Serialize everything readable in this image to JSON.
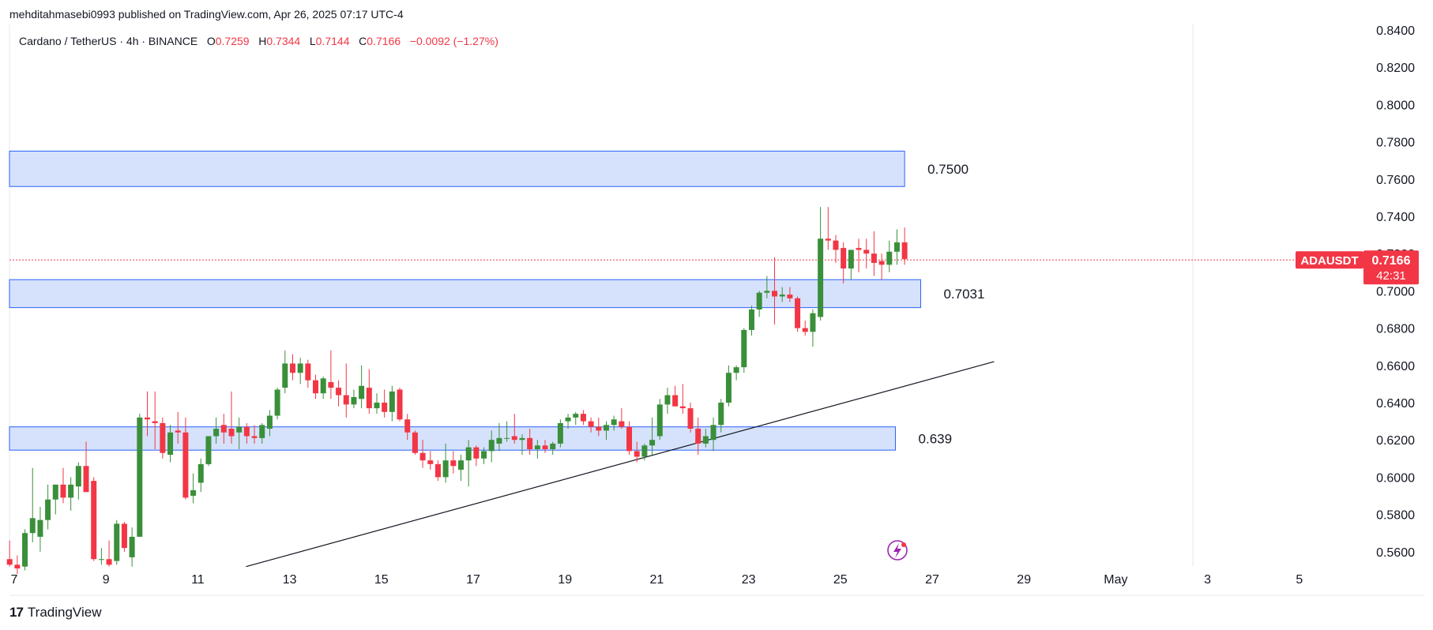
{
  "header": {
    "published": "mehditahmasebi0993 published on TradingView.com, Apr 26, 2025 07:17 UTC-4"
  },
  "legend": {
    "symbol": "Cardano / TetherUS · 4h · BINANCE",
    "o_label": "O",
    "o": "0.7259",
    "h_label": "H",
    "h": "0.7344",
    "l_label": "L",
    "l": "0.7144",
    "c_label": "C",
    "c": "0.7166",
    "change": "−0.0092 (−1.27%)"
  },
  "price_tag": {
    "symbol": "ADAUSDT",
    "price": "0.7166",
    "countdown": "42:31"
  },
  "footer": {
    "brand": "TradingView",
    "logo": "17"
  },
  "colors": {
    "up": "#3a8f3a",
    "down": "#f23645",
    "zone_fill": "#d4e0fb",
    "zone_stroke": "#2962ff",
    "trendline": "#131722",
    "axis_text": "#131722",
    "grid": "#e6e9ef"
  },
  "chart_data": {
    "type": "candlestick",
    "title": "",
    "y_axis": {
      "min": 0.55,
      "max": 0.84,
      "ticks": [
        "0.5600",
        "0.5800",
        "0.6000",
        "0.6200",
        "0.6400",
        "0.6600",
        "0.6800",
        "0.7000",
        "0.7200",
        "0.7400",
        "0.7600",
        "0.7800",
        "0.8000",
        "0.8200",
        "0.8400"
      ]
    },
    "x_axis": {
      "ticks": [
        {
          "label": "7",
          "day": 7
        },
        {
          "label": "9",
          "day": 9
        },
        {
          "label": "11",
          "day": 11
        },
        {
          "label": "13",
          "day": 13
        },
        {
          "label": "15",
          "day": 15
        },
        {
          "label": "17",
          "day": 17
        },
        {
          "label": "19",
          "day": 19
        },
        {
          "label": "21",
          "day": 21
        },
        {
          "label": "23",
          "day": 23
        },
        {
          "label": "25",
          "day": 25
        },
        {
          "label": "27",
          "day": 27
        },
        {
          "label": "29",
          "day": 29
        },
        {
          "label": "May",
          "day": 31
        },
        {
          "label": "3",
          "day": 33
        },
        {
          "label": "5",
          "day": 35
        }
      ]
    },
    "zones": [
      {
        "label": "0.7500",
        "low": 0.756,
        "high": 0.775,
        "end_day": 26.4
      },
      {
        "label": "0.7031",
        "low": 0.691,
        "high": 0.706,
        "end_day": 26.75
      },
      {
        "label": "0.639",
        "low": 0.6145,
        "high": 0.627,
        "end_day": 26.2
      }
    ],
    "trendline": {
      "x1": 12.05,
      "y1": 0.552,
      "x2": 28.35,
      "y2": 0.662
    },
    "current_price": 0.7166,
    "candles": [
      {
        "o": 0.556,
        "h": 0.566,
        "l": 0.552,
        "c": 0.553
      },
      {
        "o": 0.553,
        "h": 0.558,
        "l": 0.548,
        "c": 0.551
      },
      {
        "o": 0.552,
        "h": 0.572,
        "l": 0.55,
        "c": 0.57
      },
      {
        "o": 0.57,
        "h": 0.605,
        "l": 0.565,
        "c": 0.578
      },
      {
        "o": 0.568,
        "h": 0.584,
        "l": 0.56,
        "c": 0.577
      },
      {
        "o": 0.577,
        "h": 0.596,
        "l": 0.572,
        "c": 0.588
      },
      {
        "o": 0.588,
        "h": 0.596,
        "l": 0.58,
        "c": 0.596
      },
      {
        "o": 0.596,
        "h": 0.605,
        "l": 0.586,
        "c": 0.589
      },
      {
        "o": 0.589,
        "h": 0.6,
        "l": 0.582,
        "c": 0.596
      },
      {
        "o": 0.595,
        "h": 0.608,
        "l": 0.588,
        "c": 0.606
      },
      {
        "o": 0.606,
        "h": 0.619,
        "l": 0.592,
        "c": 0.592
      },
      {
        "o": 0.598,
        "h": 0.6,
        "l": 0.555,
        "c": 0.556
      },
      {
        "o": 0.556,
        "h": 0.562,
        "l": 0.553,
        "c": 0.556
      },
      {
        "o": 0.556,
        "h": 0.566,
        "l": 0.552,
        "c": 0.553
      },
      {
        "o": 0.555,
        "h": 0.577,
        "l": 0.553,
        "c": 0.575
      },
      {
        "o": 0.575,
        "h": 0.576,
        "l": 0.56,
        "c": 0.562
      },
      {
        "o": 0.557,
        "h": 0.573,
        "l": 0.552,
        "c": 0.568
      },
      {
        "o": 0.568,
        "h": 0.634,
        "l": 0.568,
        "c": 0.632
      },
      {
        "o": 0.632,
        "h": 0.646,
        "l": 0.622,
        "c": 0.631
      },
      {
        "o": 0.63,
        "h": 0.646,
        "l": 0.615,
        "c": 0.629
      },
      {
        "o": 0.629,
        "h": 0.632,
        "l": 0.61,
        "c": 0.613
      },
      {
        "o": 0.612,
        "h": 0.628,
        "l": 0.608,
        "c": 0.624
      },
      {
        "o": 0.625,
        "h": 0.635,
        "l": 0.618,
        "c": 0.624
      },
      {
        "o": 0.624,
        "h": 0.632,
        "l": 0.588,
        "c": 0.589
      },
      {
        "o": 0.59,
        "h": 0.602,
        "l": 0.586,
        "c": 0.593
      },
      {
        "o": 0.597,
        "h": 0.61,
        "l": 0.592,
        "c": 0.607
      },
      {
        "o": 0.607,
        "h": 0.622,
        "l": 0.606,
        "c": 0.622
      },
      {
        "o": 0.622,
        "h": 0.632,
        "l": 0.618,
        "c": 0.626
      },
      {
        "o": 0.628,
        "h": 0.634,
        "l": 0.618,
        "c": 0.624
      },
      {
        "o": 0.626,
        "h": 0.646,
        "l": 0.618,
        "c": 0.622
      },
      {
        "o": 0.624,
        "h": 0.632,
        "l": 0.615,
        "c": 0.627
      },
      {
        "o": 0.627,
        "h": 0.629,
        "l": 0.618,
        "c": 0.622
      },
      {
        "o": 0.622,
        "h": 0.628,
        "l": 0.618,
        "c": 0.621
      },
      {
        "o": 0.621,
        "h": 0.629,
        "l": 0.618,
        "c": 0.628
      },
      {
        "o": 0.626,
        "h": 0.636,
        "l": 0.622,
        "c": 0.633
      },
      {
        "o": 0.633,
        "h": 0.648,
        "l": 0.631,
        "c": 0.647
      },
      {
        "o": 0.648,
        "h": 0.668,
        "l": 0.645,
        "c": 0.661
      },
      {
        "o": 0.661,
        "h": 0.666,
        "l": 0.652,
        "c": 0.656
      },
      {
        "o": 0.656,
        "h": 0.664,
        "l": 0.65,
        "c": 0.661
      },
      {
        "o": 0.661,
        "h": 0.663,
        "l": 0.648,
        "c": 0.652
      },
      {
        "o": 0.652,
        "h": 0.655,
        "l": 0.642,
        "c": 0.645
      },
      {
        "o": 0.645,
        "h": 0.654,
        "l": 0.642,
        "c": 0.653
      },
      {
        "o": 0.651,
        "h": 0.668,
        "l": 0.642,
        "c": 0.648
      },
      {
        "o": 0.648,
        "h": 0.652,
        "l": 0.638,
        "c": 0.644
      },
      {
        "o": 0.644,
        "h": 0.661,
        "l": 0.632,
        "c": 0.639
      },
      {
        "o": 0.639,
        "h": 0.647,
        "l": 0.637,
        "c": 0.643
      },
      {
        "o": 0.642,
        "h": 0.66,
        "l": 0.637,
        "c": 0.649
      },
      {
        "o": 0.648,
        "h": 0.658,
        "l": 0.634,
        "c": 0.637
      },
      {
        "o": 0.637,
        "h": 0.645,
        "l": 0.634,
        "c": 0.64
      },
      {
        "o": 0.64,
        "h": 0.647,
        "l": 0.632,
        "c": 0.635
      },
      {
        "o": 0.635,
        "h": 0.649,
        "l": 0.63,
        "c": 0.646
      },
      {
        "o": 0.647,
        "h": 0.648,
        "l": 0.63,
        "c": 0.631
      },
      {
        "o": 0.631,
        "h": 0.634,
        "l": 0.62,
        "c": 0.624
      },
      {
        "o": 0.624,
        "h": 0.625,
        "l": 0.612,
        "c": 0.613
      },
      {
        "o": 0.613,
        "h": 0.62,
        "l": 0.605,
        "c": 0.609
      },
      {
        "o": 0.609,
        "h": 0.614,
        "l": 0.604,
        "c": 0.607
      },
      {
        "o": 0.607,
        "h": 0.609,
        "l": 0.598,
        "c": 0.6
      },
      {
        "o": 0.6,
        "h": 0.618,
        "l": 0.597,
        "c": 0.609
      },
      {
        "o": 0.609,
        "h": 0.614,
        "l": 0.602,
        "c": 0.606
      },
      {
        "o": 0.604,
        "h": 0.612,
        "l": 0.598,
        "c": 0.609
      },
      {
        "o": 0.609,
        "h": 0.62,
        "l": 0.595,
        "c": 0.616
      },
      {
        "o": 0.616,
        "h": 0.617,
        "l": 0.606,
        "c": 0.61
      },
      {
        "o": 0.61,
        "h": 0.616,
        "l": 0.607,
        "c": 0.614
      },
      {
        "o": 0.614,
        "h": 0.625,
        "l": 0.608,
        "c": 0.62
      },
      {
        "o": 0.618,
        "h": 0.629,
        "l": 0.614,
        "c": 0.621
      },
      {
        "o": 0.621,
        "h": 0.63,
        "l": 0.619,
        "c": 0.621
      },
      {
        "o": 0.622,
        "h": 0.634,
        "l": 0.618,
        "c": 0.62
      },
      {
        "o": 0.62,
        "h": 0.623,
        "l": 0.612,
        "c": 0.621
      },
      {
        "o": 0.621,
        "h": 0.626,
        "l": 0.612,
        "c": 0.615
      },
      {
        "o": 0.615,
        "h": 0.62,
        "l": 0.61,
        "c": 0.617
      },
      {
        "o": 0.617,
        "h": 0.62,
        "l": 0.613,
        "c": 0.615
      },
      {
        "o": 0.615,
        "h": 0.619,
        "l": 0.612,
        "c": 0.618
      },
      {
        "o": 0.618,
        "h": 0.631,
        "l": 0.616,
        "c": 0.629
      },
      {
        "o": 0.63,
        "h": 0.634,
        "l": 0.626,
        "c": 0.632
      },
      {
        "o": 0.632,
        "h": 0.635,
        "l": 0.628,
        "c": 0.634
      },
      {
        "o": 0.634,
        "h": 0.636,
        "l": 0.628,
        "c": 0.63
      },
      {
        "o": 0.63,
        "h": 0.632,
        "l": 0.624,
        "c": 0.627
      },
      {
        "o": 0.627,
        "h": 0.632,
        "l": 0.622,
        "c": 0.625
      },
      {
        "o": 0.625,
        "h": 0.63,
        "l": 0.62,
        "c": 0.628
      },
      {
        "o": 0.628,
        "h": 0.633,
        "l": 0.625,
        "c": 0.631
      },
      {
        "o": 0.63,
        "h": 0.637,
        "l": 0.626,
        "c": 0.627
      },
      {
        "o": 0.627,
        "h": 0.63,
        "l": 0.612,
        "c": 0.614
      },
      {
        "o": 0.614,
        "h": 0.619,
        "l": 0.608,
        "c": 0.611
      },
      {
        "o": 0.611,
        "h": 0.618,
        "l": 0.609,
        "c": 0.617
      },
      {
        "o": 0.617,
        "h": 0.632,
        "l": 0.612,
        "c": 0.62
      },
      {
        "o": 0.622,
        "h": 0.642,
        "l": 0.62,
        "c": 0.639
      },
      {
        "o": 0.639,
        "h": 0.648,
        "l": 0.634,
        "c": 0.644
      },
      {
        "o": 0.644,
        "h": 0.649,
        "l": 0.638,
        "c": 0.638
      },
      {
        "o": 0.638,
        "h": 0.65,
        "l": 0.634,
        "c": 0.637
      },
      {
        "o": 0.637,
        "h": 0.64,
        "l": 0.624,
        "c": 0.626
      },
      {
        "o": 0.626,
        "h": 0.632,
        "l": 0.612,
        "c": 0.618
      },
      {
        "o": 0.618,
        "h": 0.626,
        "l": 0.616,
        "c": 0.622
      },
      {
        "o": 0.62,
        "h": 0.632,
        "l": 0.614,
        "c": 0.628
      },
      {
        "o": 0.628,
        "h": 0.642,
        "l": 0.624,
        "c": 0.64
      },
      {
        "o": 0.64,
        "h": 0.66,
        "l": 0.638,
        "c": 0.656
      },
      {
        "o": 0.656,
        "h": 0.66,
        "l": 0.652,
        "c": 0.659
      },
      {
        "o": 0.659,
        "h": 0.68,
        "l": 0.656,
        "c": 0.679
      },
      {
        "o": 0.679,
        "h": 0.692,
        "l": 0.676,
        "c": 0.69
      },
      {
        "o": 0.69,
        "h": 0.7,
        "l": 0.686,
        "c": 0.699
      },
      {
        "o": 0.699,
        "h": 0.708,
        "l": 0.696,
        "c": 0.7
      },
      {
        "o": 0.7,
        "h": 0.718,
        "l": 0.682,
        "c": 0.697
      },
      {
        "o": 0.697,
        "h": 0.702,
        "l": 0.694,
        "c": 0.698
      },
      {
        "o": 0.698,
        "h": 0.702,
        "l": 0.694,
        "c": 0.696
      },
      {
        "o": 0.696,
        "h": 0.697,
        "l": 0.678,
        "c": 0.68
      },
      {
        "o": 0.68,
        "h": 0.684,
        "l": 0.676,
        "c": 0.678
      },
      {
        "o": 0.678,
        "h": 0.69,
        "l": 0.67,
        "c": 0.688
      },
      {
        "o": 0.686,
        "h": 0.745,
        "l": 0.684,
        "c": 0.728
      },
      {
        "o": 0.728,
        "h": 0.745,
        "l": 0.722,
        "c": 0.727
      },
      {
        "o": 0.727,
        "h": 0.73,
        "l": 0.715,
        "c": 0.722
      },
      {
        "o": 0.723,
        "h": 0.726,
        "l": 0.704,
        "c": 0.712
      },
      {
        "o": 0.712,
        "h": 0.722,
        "l": 0.706,
        "c": 0.722
      },
      {
        "o": 0.723,
        "h": 0.728,
        "l": 0.71,
        "c": 0.722
      },
      {
        "o": 0.722,
        "h": 0.728,
        "l": 0.712,
        "c": 0.72
      },
      {
        "o": 0.72,
        "h": 0.732,
        "l": 0.708,
        "c": 0.715
      },
      {
        "o": 0.716,
        "h": 0.72,
        "l": 0.706,
        "c": 0.714
      },
      {
        "o": 0.714,
        "h": 0.727,
        "l": 0.71,
        "c": 0.721
      },
      {
        "o": 0.721,
        "h": 0.733,
        "l": 0.714,
        "c": 0.726
      },
      {
        "o": 0.726,
        "h": 0.734,
        "l": 0.714,
        "c": 0.717
      }
    ]
  }
}
